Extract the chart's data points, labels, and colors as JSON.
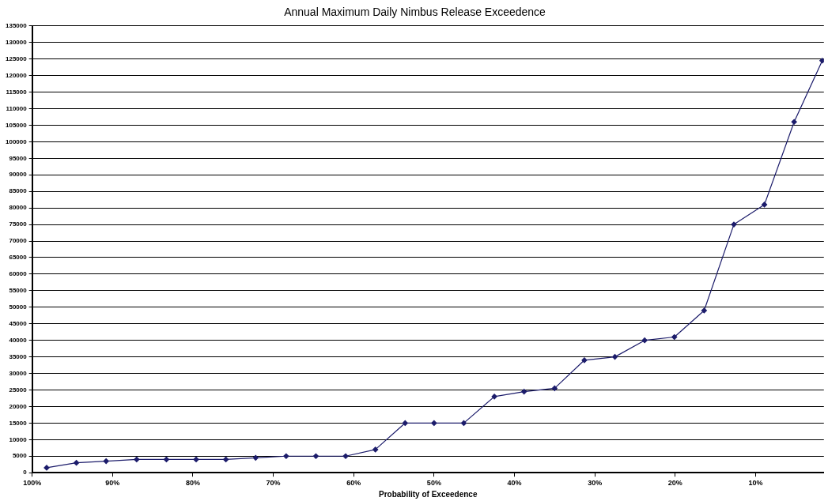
{
  "chart_data": {
    "type": "line",
    "title": "Annual Maximum Daily Nimbus Release Exceedence",
    "xlabel": "Probability of Exceedence",
    "x": [
      98.2,
      94.5,
      90.8,
      87.0,
      83.3,
      79.6,
      75.9,
      72.2,
      68.4,
      64.7,
      61.0,
      57.3,
      53.6,
      50.0,
      46.3,
      42.5,
      38.8,
      35.0,
      31.3,
      27.5,
      23.8,
      20.1,
      16.4,
      12.7,
      8.9,
      5.2,
      1.7
    ],
    "series": [
      {
        "color": "#1c1c6b",
        "values": [
          1500,
          3000,
          3500,
          4000,
          4000,
          4000,
          4000,
          4500,
          5000,
          5000,
          5000,
          7000,
          15000,
          15000,
          15000,
          23000,
          24500,
          25500,
          34000,
          35000,
          40000,
          41000,
          49000,
          75000,
          81000,
          106000,
          124500
        ]
      }
    ],
    "xlim": [
      100,
      1.5
    ],
    "xticks": [
      {
        "value": 100,
        "label": "100%"
      },
      {
        "value": 90,
        "label": "90%"
      },
      {
        "value": 80,
        "label": "80%"
      },
      {
        "value": 70,
        "label": "70%"
      },
      {
        "value": 60,
        "label": "60%"
      },
      {
        "value": 50,
        "label": "50%"
      },
      {
        "value": 40,
        "label": "40%"
      },
      {
        "value": 30,
        "label": "30%"
      },
      {
        "value": 20,
        "label": "20%"
      },
      {
        "value": 10,
        "label": "10%"
      }
    ],
    "ylim": [
      0,
      135000
    ],
    "yticks": [
      0,
      5000,
      10000,
      15000,
      20000,
      25000,
      30000,
      35000,
      40000,
      45000,
      50000,
      55000,
      60000,
      65000,
      70000,
      75000,
      80000,
      85000,
      90000,
      95000,
      100000,
      105000,
      110000,
      115000,
      120000,
      125000,
      130000,
      135000
    ],
    "grid": "y",
    "marker": "diamond",
    "line_style": "solid"
  }
}
